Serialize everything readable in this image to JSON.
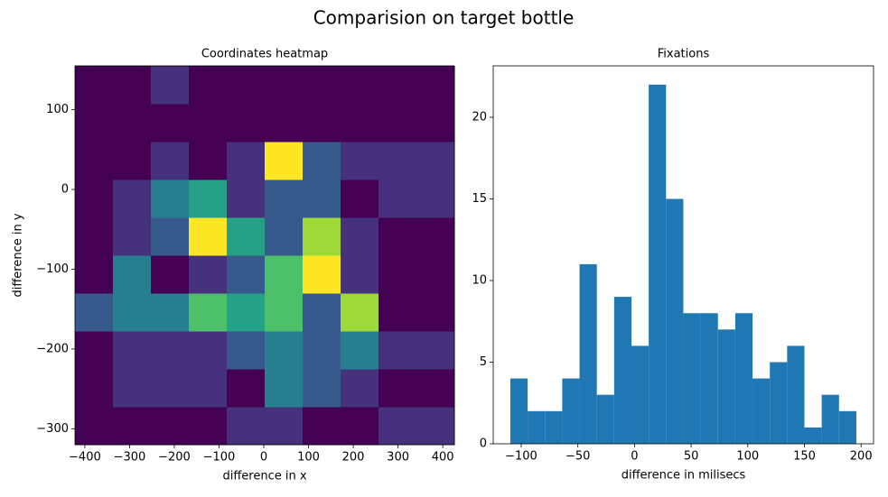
{
  "title": "Comparision on target bottle",
  "chart_data": [
    {
      "type": "heatmap",
      "title": "Coordinates heatmap",
      "xlabel": "difference in x",
      "ylabel": "difference in y",
      "colormap": "viridis",
      "x_edges": [
        -422,
        -337.2,
        -252.4,
        -167.6,
        -82.8,
        2,
        86.8,
        171.6,
        256.4,
        341.2,
        426
      ],
      "y_edges": [
        -320,
        -272.5,
        -225,
        -177.5,
        -130,
        -82.5,
        -35,
        12.5,
        60,
        107.5,
        155
      ],
      "z": [
        [
          0,
          0,
          0,
          0,
          1,
          1,
          0,
          0,
          1,
          1
        ],
        [
          0,
          1,
          1,
          1,
          0,
          3,
          2,
          1,
          0,
          0
        ],
        [
          0,
          1,
          1,
          1,
          2,
          3,
          2,
          3,
          1,
          1
        ],
        [
          2,
          3,
          3,
          5,
          4,
          5,
          2,
          6,
          0,
          0
        ],
        [
          0,
          3,
          0,
          1,
          2,
          5,
          7,
          1,
          0,
          0
        ],
        [
          0,
          1,
          2,
          7,
          4,
          2,
          6,
          1,
          0,
          0
        ],
        [
          0,
          1,
          3,
          4,
          1,
          2,
          2,
          0,
          1,
          1
        ],
        [
          0,
          0,
          1,
          0,
          1,
          7,
          2,
          1,
          1,
          1
        ],
        [
          0,
          0,
          0,
          0,
          0,
          0,
          0,
          0,
          0,
          0
        ],
        [
          0,
          0,
          1,
          0,
          0,
          0,
          0,
          0,
          0,
          0
        ]
      ],
      "xlim": [
        -422,
        426
      ],
      "ylim": [
        -320,
        155
      ],
      "xticks": [
        {
          "value": -400,
          "label": "−400"
        },
        {
          "value": -300,
          "label": "−300"
        },
        {
          "value": -200,
          "label": "−200"
        },
        {
          "value": -100,
          "label": "−100"
        },
        0,
        100,
        200,
        300,
        400
      ],
      "yticks": [
        {
          "value": -300,
          "label": "−300"
        },
        {
          "value": -200,
          "label": "−200"
        },
        {
          "value": -100,
          "label": "−100"
        },
        0,
        100
      ]
    },
    {
      "type": "histogram",
      "title": "Fixations",
      "xlabel": "difference in milisecs",
      "color": "#1f77b4",
      "bins": [
        -109.6,
        -94.33,
        -79.06,
        -63.79,
        -48.52,
        -33.25,
        -17.98,
        -2.71,
        12.56,
        27.83,
        43.1,
        58.37,
        73.64,
        88.91,
        104.18,
        119.45,
        134.72,
        149.99,
        165.26,
        180.53,
        195.8
      ],
      "values": [
        4,
        2,
        2,
        4,
        11,
        3,
        9,
        6,
        22,
        15,
        8,
        8,
        7,
        8,
        4,
        5,
        6,
        1,
        3,
        2
      ],
      "xlim": [
        -124.7,
        211
      ],
      "ylim": [
        0,
        23.15
      ],
      "xticks": [
        {
          "value": -100,
          "label": "−100"
        },
        {
          "value": -50,
          "label": "−50"
        },
        0,
        50,
        100,
        150,
        200
      ],
      "yticks": [
        0,
        5,
        10,
        15,
        20
      ]
    }
  ]
}
